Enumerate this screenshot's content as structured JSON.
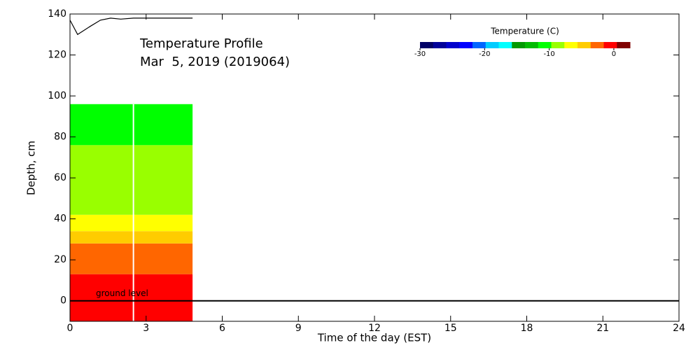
{
  "chart_data": {
    "type": "heatmap",
    "title": "Temperature Profile",
    "subtitle": "Mar  5, 2019 (2019064)",
    "x_label": "Time of the day (EST)",
    "y_label": "Depth, cm",
    "annotation": "ground level",
    "xlim": [
      0,
      24
    ],
    "xticks": [
      0,
      3,
      6,
      9,
      12,
      15,
      18,
      21,
      24
    ],
    "ylim": [
      -10,
      140
    ],
    "yticks": [
      0,
      20,
      40,
      60,
      80,
      100,
      120,
      140
    ],
    "time_range": [
      0,
      4.83
    ],
    "gap_x": 2.5,
    "layers": [
      {
        "bottom": -10,
        "top": 13,
        "color": "#ff0000"
      },
      {
        "bottom": 13,
        "top": 28,
        "color": "#ff6600"
      },
      {
        "bottom": 28,
        "top": 34,
        "color": "#ffcc00"
      },
      {
        "bottom": 34,
        "top": 42,
        "color": "#ffff00"
      },
      {
        "bottom": 42,
        "top": 76,
        "color": "#99ff00"
      },
      {
        "bottom": 76,
        "top": 96,
        "color": "#00ff00"
      }
    ],
    "snow_depth": {
      "x": [
        0,
        0.3,
        0.8,
        1.2,
        1.6,
        2,
        2.5,
        4.83
      ],
      "values": [
        137,
        130,
        134,
        137,
        138,
        137.5,
        138,
        138
      ]
    },
    "colorbar": {
      "title": "Temperature (C)",
      "lim": [
        -30,
        2.5
      ],
      "ticks": [
        -30,
        -20,
        -10,
        0
      ],
      "colors": [
        "#000066",
        "#000099",
        "#0000cc",
        "#0000ff",
        "#0066ff",
        "#00ccff",
        "#00ffff",
        "#009900",
        "#00bb00",
        "#00ff00",
        "#99ff00",
        "#ffff00",
        "#ffcc00",
        "#ff6600",
        "#ff0000",
        "#800000"
      ]
    }
  }
}
